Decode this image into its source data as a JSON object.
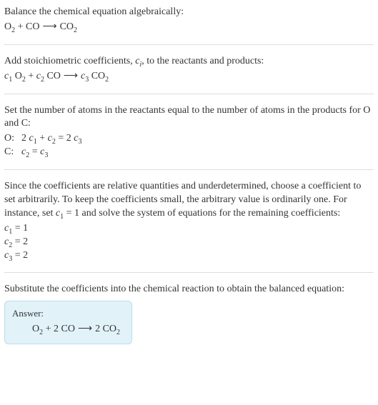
{
  "colors": {
    "text": "#333333",
    "rule": "#dddddd",
    "answer_bg": "#e1f2f9",
    "answer_border": "#bcdbe8"
  },
  "section1": {
    "intro": "Balance the chemical equation algebraically:",
    "eq": {
      "r1": "O",
      "r1sub": "2",
      "plus1": " + ",
      "r2": "CO",
      "arrow": "⟶",
      "p1": "CO",
      "p1sub": "2"
    }
  },
  "section2": {
    "intro_a": "Add stoichiometric coefficients, ",
    "ci_c": "c",
    "ci_i": "i",
    "intro_b": ", to the reactants and products:",
    "eq": {
      "c1": "c",
      "c1s": "1",
      "sp1": " ",
      "r1": "O",
      "r1sub": "2",
      "plus1": " + ",
      "c2": "c",
      "c2s": "2",
      "sp2": " ",
      "r2": "CO",
      "arrow": "⟶",
      "c3": "c",
      "c3s": "3",
      "sp3": " ",
      "p1": "CO",
      "p1sub": "2"
    }
  },
  "section3": {
    "intro": "Set the number of atoms in the reactants equal to the number of atoms in the products for O and C:",
    "rowO": {
      "label": "O:",
      "two": "2 ",
      "c1": "c",
      "c1s": "1",
      "plus": " + ",
      "c2": "c",
      "c2s": "2",
      "eq": " = 2 ",
      "c3": "c",
      "c3s": "3"
    },
    "rowC": {
      "label": "C:",
      "c2": "c",
      "c2s": "2",
      "eq": " = ",
      "c3": "c",
      "c3s": "3"
    }
  },
  "section4": {
    "para_a": "Since the coefficients are relative quantities and underdetermined, choose a coefficient to set arbitrarily. To keep the coefficients small, the arbitrary value is ordinarily one. For instance, set ",
    "c1": "c",
    "c1s": "1",
    "para_b": " = 1 and solve the system of equations for the remaining coefficients:",
    "sol1": {
      "c": "c",
      "s": "1",
      "rest": " = 1"
    },
    "sol2": {
      "c": "c",
      "s": "2",
      "rest": " = 2"
    },
    "sol3": {
      "c": "c",
      "s": "3",
      "rest": " = 2"
    }
  },
  "section5": {
    "intro": "Substitute the coefficients into the chemical reaction to obtain the balanced equation:",
    "answer_label": "Answer:",
    "eq": {
      "r1": "O",
      "r1sub": "2",
      "plus1": " + 2 ",
      "r2": "CO",
      "arrow": "⟶",
      "two": "2 ",
      "p1": "CO",
      "p1sub": "2"
    }
  }
}
